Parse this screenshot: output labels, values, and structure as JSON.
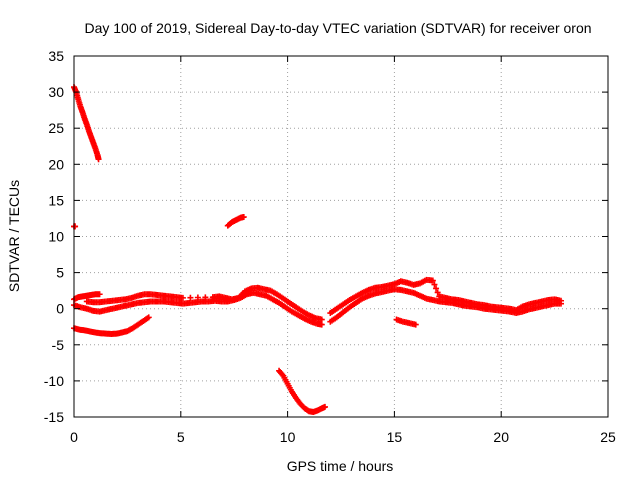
{
  "chart_data": {
    "type": "scatter",
    "title": "Day 100 of 2019, Sidereal Day-to-day VTEC variation (SDTVAR) for receiver oron",
    "xlabel": "GPS time / hours",
    "ylabel": "SDTVAR / TECUs",
    "xlim": [
      0,
      25
    ],
    "ylim": [
      -15,
      35
    ],
    "xticks": [
      0,
      5,
      10,
      15,
      20,
      25
    ],
    "yticks": [
      -15,
      -10,
      -5,
      0,
      5,
      10,
      15,
      20,
      25,
      30,
      35
    ],
    "grid": true,
    "marker": "plus",
    "color": "#ff0000",
    "series": [
      {
        "name": "seg-high-start",
        "x": [
          0.0,
          0.1,
          0.2,
          0.3,
          0.4,
          0.5,
          0.6,
          0.7,
          0.8,
          0.9,
          1.0,
          1.1,
          1.15
        ],
        "y": [
          30.7,
          30.0,
          29.0,
          28.0,
          27.2,
          26.3,
          25.5,
          24.6,
          23.8,
          23.0,
          22.2,
          21.3,
          20.7
        ]
      },
      {
        "name": "seg-isolated",
        "x": [
          0.0,
          0.05
        ],
        "y": [
          11.4,
          11.4
        ]
      },
      {
        "name": "seg-mid",
        "x": [
          7.2,
          7.4,
          7.6,
          7.8,
          7.95
        ],
        "y": [
          11.5,
          12.0,
          12.3,
          12.6,
          12.7
        ]
      },
      {
        "name": "seg-negative-start",
        "x": [
          0.0,
          0.25,
          0.5,
          0.75,
          1.0,
          1.25,
          1.5,
          1.75,
          2.0,
          2.25,
          2.5,
          2.75,
          3.0,
          3.25,
          3.5
        ],
        "y": [
          -2.7,
          -2.9,
          -3.0,
          -3.15,
          -3.3,
          -3.4,
          -3.45,
          -3.5,
          -3.45,
          -3.3,
          -3.1,
          -2.7,
          -2.2,
          -1.7,
          -1.2
        ]
      },
      {
        "name": "seg-upper-early",
        "x": [
          0.0,
          0.2,
          0.4,
          0.6,
          0.8,
          1.0,
          1.2
        ],
        "y": [
          1.3,
          1.6,
          1.7,
          1.8,
          1.9,
          2.0,
          2.0
        ]
      },
      {
        "name": "seg-main-low",
        "x": [
          0.0,
          0.3,
          0.6,
          0.9,
          1.2,
          1.5,
          1.8,
          2.1,
          2.4,
          2.7,
          3.0,
          3.3,
          3.6,
          3.9,
          4.2,
          4.5,
          4.8,
          5.1,
          5.4,
          5.7,
          6.0,
          6.3,
          6.6,
          6.9,
          7.2,
          7.5,
          7.8,
          8.1,
          8.4,
          8.7,
          9.0,
          9.3,
          9.6,
          9.9,
          10.2,
          10.5,
          10.8,
          11.1,
          11.4,
          11.6
        ],
        "y": [
          0.5,
          0.2,
          0.0,
          -0.3,
          -0.4,
          -0.2,
          0.0,
          0.2,
          0.4,
          0.6,
          0.8,
          0.9,
          1.0,
          1.0,
          1.0,
          0.9,
          0.8,
          0.7,
          0.8,
          0.9,
          1.0,
          1.0,
          1.1,
          1.0,
          1.0,
          1.2,
          1.5,
          2.0,
          2.2,
          2.0,
          1.8,
          1.3,
          0.8,
          0.2,
          -0.4,
          -0.9,
          -1.4,
          -1.8,
          -2.1,
          -2.2
        ]
      },
      {
        "name": "seg-main-high",
        "x": [
          0.6,
          0.9,
          1.2,
          1.5,
          1.8,
          2.1,
          2.4,
          2.7,
          3.0,
          3.3,
          3.6,
          3.9,
          4.2,
          4.5,
          4.8,
          5.1,
          6.5,
          6.8,
          7.1,
          7.4,
          7.7,
          8.0,
          8.3,
          8.6,
          8.9,
          9.2,
          9.5,
          9.8,
          10.1,
          10.4,
          10.7,
          11.0,
          11.3,
          11.6
        ],
        "y": [
          1.0,
          0.9,
          0.9,
          1.0,
          1.1,
          1.2,
          1.3,
          1.5,
          1.8,
          2.0,
          2.0,
          1.9,
          1.8,
          1.7,
          1.6,
          1.5,
          1.6,
          1.7,
          1.5,
          1.3,
          1.5,
          2.4,
          2.8,
          2.9,
          2.7,
          2.5,
          2.0,
          1.4,
          0.8,
          0.2,
          -0.4,
          -0.9,
          -1.3,
          -1.5
        ]
      },
      {
        "name": "seg-drop",
        "x": [
          9.6,
          9.8,
          10.0,
          10.2,
          10.4,
          10.6,
          10.8,
          11.0,
          11.2,
          11.4,
          11.6,
          11.75
        ],
        "y": [
          -8.6,
          -9.3,
          -10.4,
          -11.5,
          -12.4,
          -13.2,
          -13.8,
          -14.2,
          -14.3,
          -14.1,
          -13.8,
          -13.6
        ]
      },
      {
        "name": "seg-second-half-low",
        "x": [
          12.0,
          12.3,
          12.6,
          12.9,
          13.2,
          13.5,
          13.8,
          14.1,
          14.4,
          14.7,
          15.0,
          15.3,
          15.6,
          15.9,
          16.2,
          16.5,
          16.8,
          17.1,
          17.4,
          17.7,
          18.0,
          18.3,
          18.6,
          18.9,
          19.2,
          19.5,
          19.8,
          20.1,
          20.4,
          20.7,
          21.0,
          21.3,
          21.6,
          21.9,
          22.2,
          22.5,
          22.8
        ],
        "y": [
          -1.8,
          -1.2,
          -0.5,
          0.2,
          0.8,
          1.4,
          1.8,
          2.1,
          2.3,
          2.5,
          2.7,
          2.6,
          2.4,
          2.2,
          1.8,
          1.4,
          1.2,
          1.0,
          0.9,
          0.8,
          0.6,
          0.4,
          0.3,
          0.2,
          0.0,
          -0.1,
          -0.2,
          -0.3,
          -0.4,
          -0.6,
          -0.4,
          -0.1,
          0.1,
          0.3,
          0.5,
          0.7,
          0.7
        ]
      },
      {
        "name": "seg-second-half-high",
        "x": [
          12.0,
          12.3,
          12.6,
          12.9,
          13.2,
          13.5,
          13.8,
          14.1,
          14.4,
          14.7,
          15.0,
          15.3,
          15.6,
          15.9,
          16.2,
          16.5,
          16.8,
          17.1,
          17.4,
          17.7,
          18.0,
          18.3,
          18.6,
          18.9,
          19.2,
          19.5,
          19.8,
          20.1,
          20.4,
          20.7,
          21.0,
          21.3,
          21.6,
          21.9,
          22.2,
          22.5,
          22.8
        ],
        "y": [
          -0.6,
          0.0,
          0.6,
          1.2,
          1.7,
          2.2,
          2.6,
          2.9,
          3.0,
          3.2,
          3.4,
          3.8,
          3.6,
          3.3,
          3.5,
          4.0,
          3.9,
          1.7,
          1.5,
          1.3,
          1.2,
          1.0,
          0.8,
          0.6,
          0.5,
          0.3,
          0.2,
          0.1,
          0.0,
          -0.2,
          0.3,
          0.6,
          0.8,
          1.0,
          1.2,
          1.3,
          1.1
        ]
      },
      {
        "name": "seg-small-dip",
        "x": [
          15.1,
          15.4,
          15.7,
          16.0
        ],
        "y": [
          -1.5,
          -1.8,
          -2.0,
          -2.2
        ]
      }
    ]
  }
}
